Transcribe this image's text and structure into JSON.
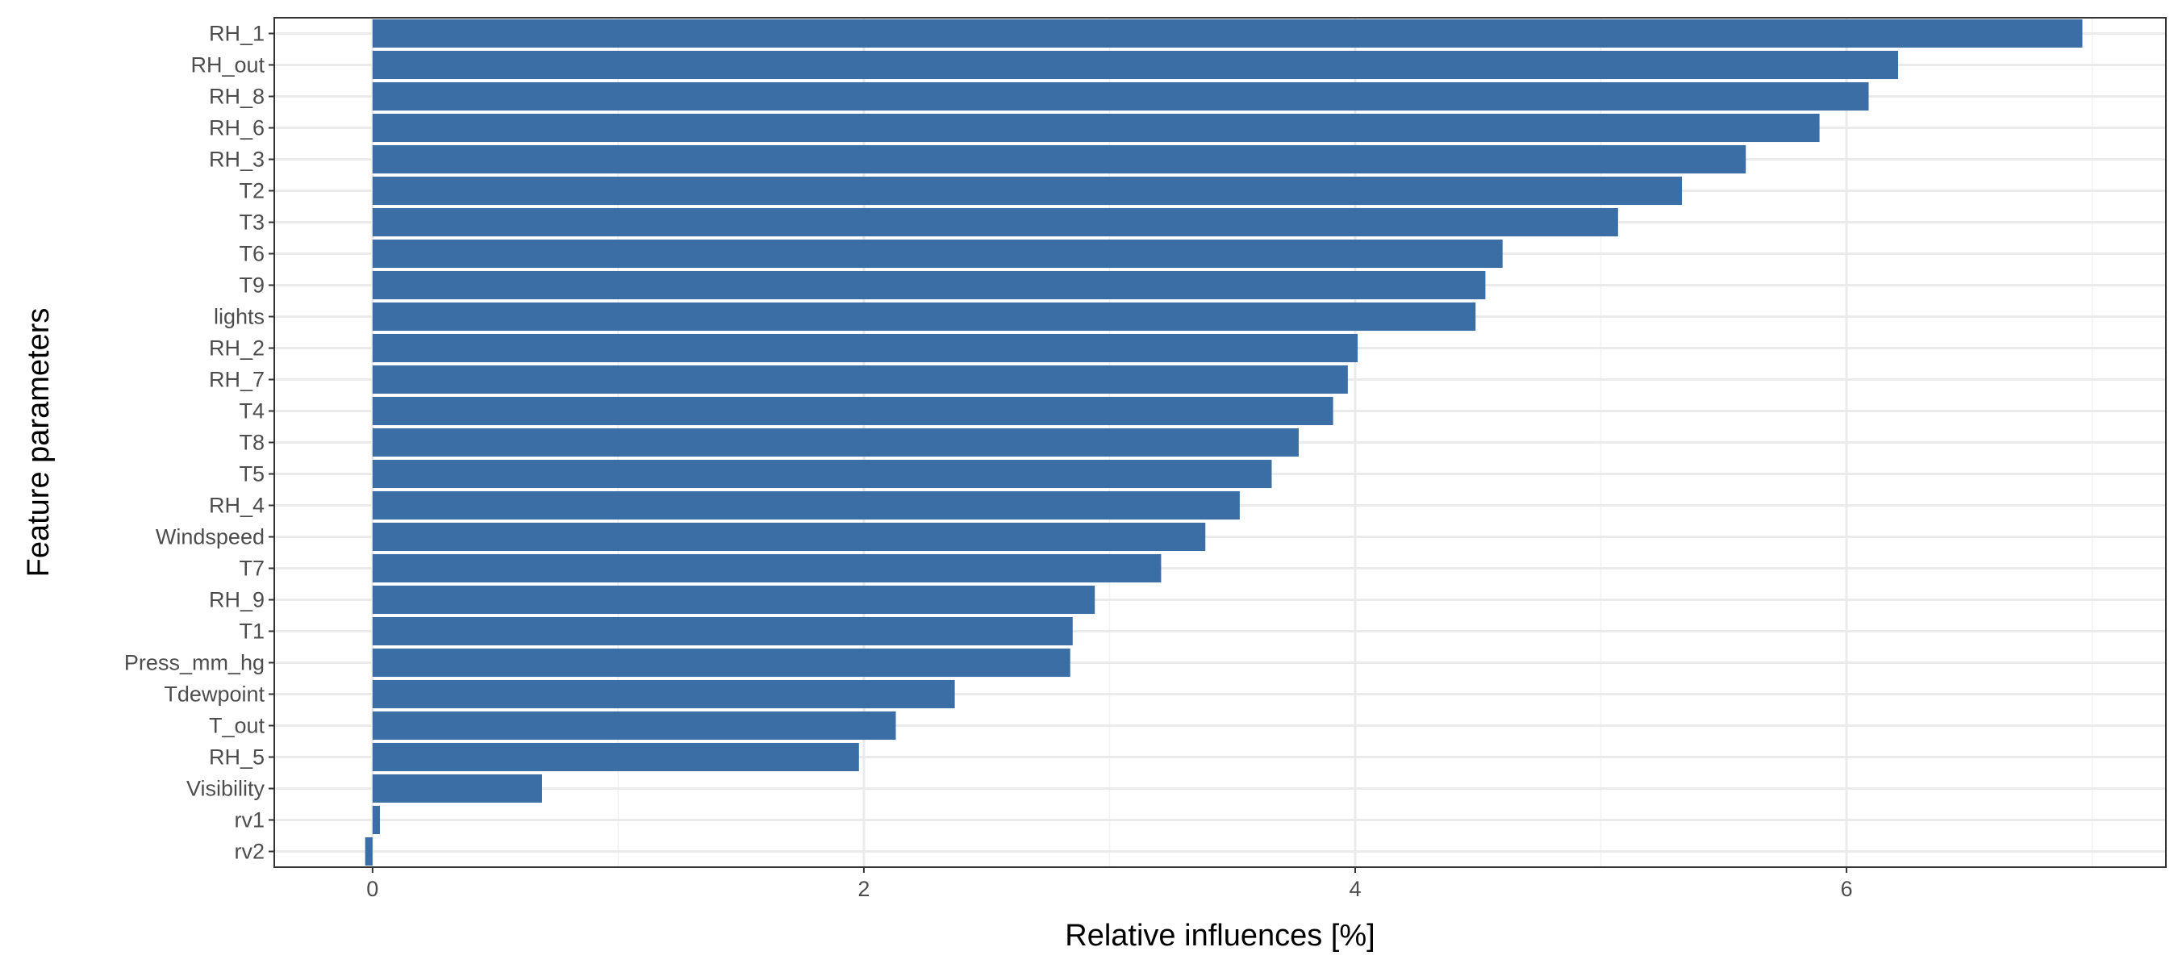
{
  "chart_data": {
    "type": "bar",
    "orientation": "horizontal",
    "xlabel": "Relative influences [%]",
    "ylabel": "Feature parameters",
    "xlim": [
      -0.4,
      7.3
    ],
    "xticks": [
      0,
      2,
      4,
      6
    ],
    "grid": true,
    "bar_color": "#3A6EA5",
    "categories": [
      "RH_1",
      "RH_out",
      "RH_8",
      "RH_6",
      "RH_3",
      "T2",
      "T3",
      "T6",
      "T9",
      "lights",
      "RH_2",
      "RH_7",
      "T4",
      "T8",
      "T5",
      "RH_4",
      "Windspeed",
      "T7",
      "RH_9",
      "T1",
      "Press_mm_hg",
      "Tdewpoint",
      "T_out",
      "RH_5",
      "Visibility",
      "rv1",
      "rv2"
    ],
    "values": [
      6.96,
      6.21,
      6.09,
      5.89,
      5.59,
      5.33,
      5.07,
      4.6,
      4.53,
      4.49,
      4.01,
      3.97,
      3.91,
      3.77,
      3.66,
      3.53,
      3.39,
      3.21,
      2.94,
      2.85,
      2.84,
      2.37,
      2.13,
      1.98,
      0.69,
      0.03,
      -0.03
    ]
  }
}
